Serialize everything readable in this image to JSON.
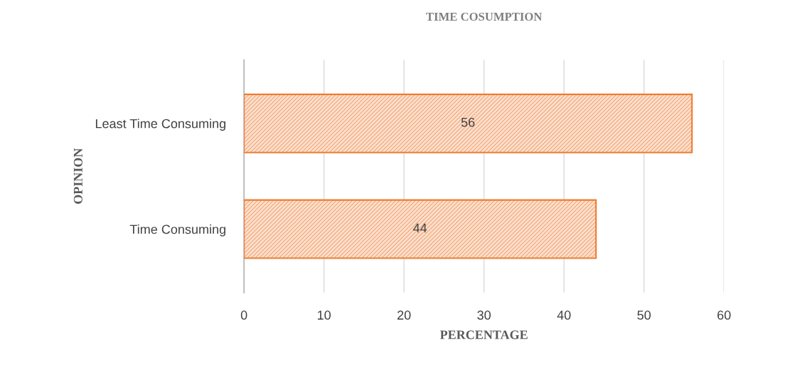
{
  "chart_data": {
    "type": "bar",
    "orientation": "horizontal",
    "title": "TIME COSUMPTION",
    "xlabel": "PERCENTAGE",
    "ylabel": "OPINION",
    "categories": [
      "Least Time Consuming",
      "Time Consuming"
    ],
    "values": [
      56,
      44
    ],
    "color": "#ed7d31",
    "xlim": [
      0,
      60
    ],
    "xticks": [
      0,
      10,
      20,
      30,
      40,
      50,
      60
    ],
    "grid": "x",
    "data_labels": true
  }
}
